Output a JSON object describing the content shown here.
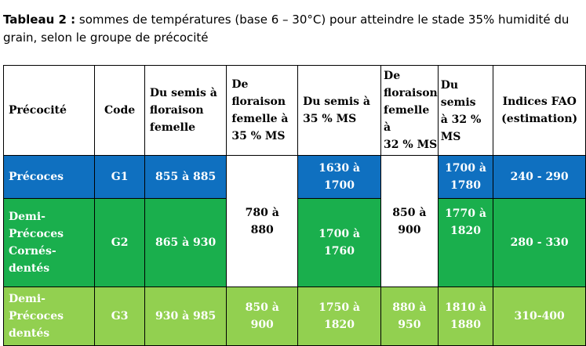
{
  "caption": {
    "title": "Tableau 2 :",
    "text": " sommes de températures (base 6 – 30°C) pour atteindre le stade 35% humidité du grain, selon le groupe de précocité"
  },
  "headers": {
    "precocite": "Précocité",
    "code": "Code",
    "semis_floraison": "Du semis à\nfloraison\nfemelle",
    "floraison_35": "De\nfloraison\nfemelle à\n35 % MS",
    "semis_35": "Du semis à\n35 % MS",
    "floraison_32": "De\nfloraison\nfemelle à\n32 % MS",
    "semis_32": "Du semis\nà  32  %\nMS",
    "fao": "Indices FAO\n(estimation)"
  },
  "rows": [
    {
      "precocite": "Précoces",
      "code": "G1",
      "semis_floraison": "855 à 885",
      "semis_35": "1630 à\n1700",
      "semis_32": "1700 à\n1780",
      "fao": "240 - 290"
    },
    {
      "precocite": "Demi-\nPrécoces\nCornés-\ndentés",
      "code": "G2",
      "semis_floraison": "865 à 930",
      "semis_35": "1700 à\n1760",
      "semis_32": "1770 à\n1820",
      "fao": "280 - 330"
    },
    {
      "precocite": "Demi-\nPrécoces\ndentés",
      "code": "G3",
      "semis_floraison": "930 à 985",
      "floraison_35": "850 à\n900",
      "semis_35": "1750 à\n1820",
      "floraison_32": "880 à\n950",
      "semis_32": "1810 à\n1880",
      "fao": "310-400"
    }
  ],
  "merged": {
    "floraison_35": "780 à\n880",
    "floraison_32": "850 à\n900"
  },
  "colors": {
    "blue": "#0f70c0",
    "dark_green": "#1aaf4d",
    "light_green": "#92d050"
  }
}
